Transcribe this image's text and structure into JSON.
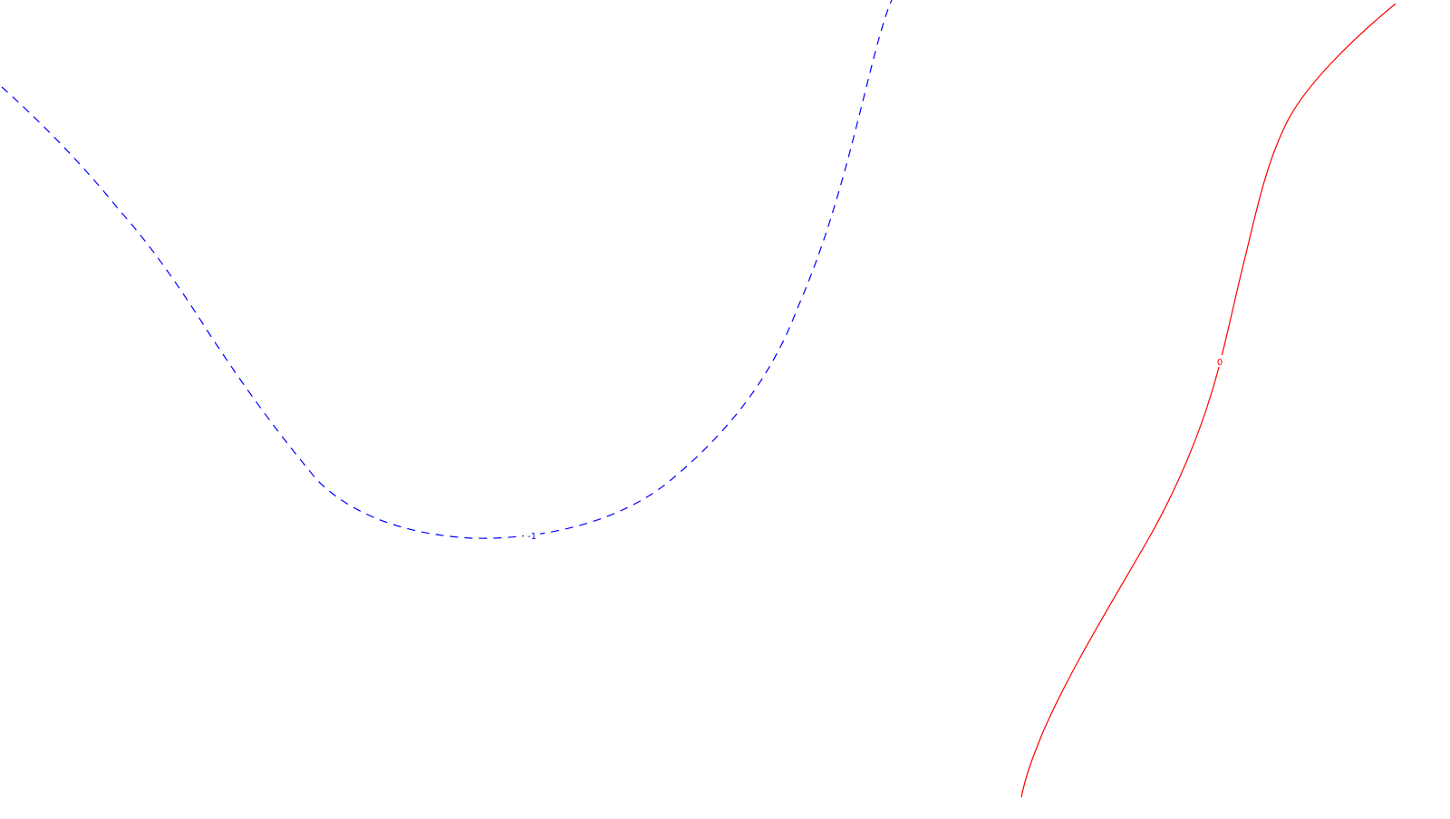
{
  "chart_data": {
    "type": "contour",
    "series": [
      {
        "level_label": "-1",
        "color": "#0000ff",
        "line_style": "dashed"
      },
      {
        "level_label": "0",
        "color": "#ff0000",
        "line_style": "solid"
      }
    ],
    "grid": false,
    "legend": "none"
  }
}
